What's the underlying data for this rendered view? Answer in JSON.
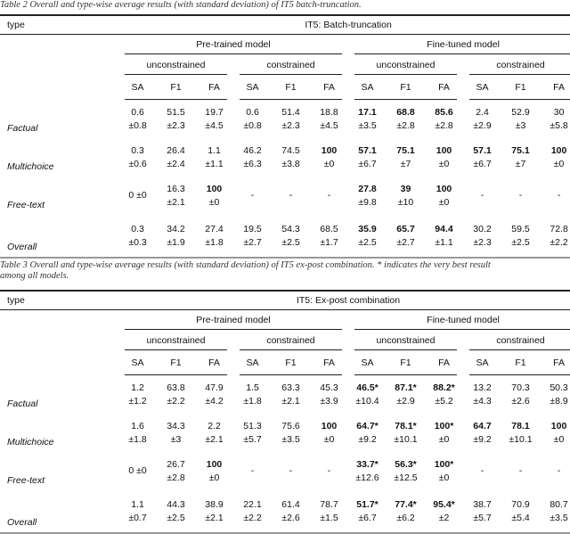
{
  "tables": [
    {
      "caption": [
        "Table 2 Overall and type-wise average results (with standard deviation) of IT5 batch-truncation."
      ],
      "type_header": "type",
      "title": "IT5: Batch-truncation",
      "groups": [
        "Pre-trained model",
        "Fine-tuned model"
      ],
      "subgroups": [
        "unconstrained",
        "constrained",
        "unconstrained",
        "constrained"
      ],
      "metrics": [
        "SA",
        "F1",
        "FA",
        "SA",
        "F1",
        "FA",
        "SA",
        "F1",
        "FA",
        "SA",
        "F1",
        "FA"
      ],
      "rows": [
        {
          "label": "Factual",
          "cells": [
            {
              "v": "0.6",
              "sd": "±0.8"
            },
            {
              "v": "51.5",
              "sd": "±2.3"
            },
            {
              "v": "19.7",
              "sd": "±4.5"
            },
            {
              "v": "0.6",
              "sd": "±0.8"
            },
            {
              "v": "51.4",
              "sd": "±2.3"
            },
            {
              "v": "18.8",
              "sd": "±4.5"
            },
            {
              "v": "17.1",
              "sd": "±3.5",
              "bold": true
            },
            {
              "v": "68.8",
              "sd": "±2.8",
              "bold": true
            },
            {
              "v": "85.6",
              "sd": "±2.8",
              "bold": true
            },
            {
              "v": "2.4",
              "sd": "±2.9"
            },
            {
              "v": "52.9",
              "sd": "±3"
            },
            {
              "v": "30",
              "sd": "±5.8"
            }
          ]
        },
        {
          "label": "Multichoice",
          "cells": [
            {
              "v": "0.3",
              "sd": "±0.6"
            },
            {
              "v": "26.4",
              "sd": "±2.4"
            },
            {
              "v": "1.1",
              "sd": "±1.1"
            },
            {
              "v": "46.2",
              "sd": "±6.3"
            },
            {
              "v": "74.5",
              "sd": "±3.8"
            },
            {
              "v": "100",
              "sd": "±0",
              "bold": true
            },
            {
              "v": "57.1",
              "sd": "±6.7",
              "bold": true
            },
            {
              "v": "75.1",
              "sd": "±7",
              "bold": true
            },
            {
              "v": "100",
              "sd": "±0",
              "bold": true
            },
            {
              "v": "57.1",
              "sd": "±6.7",
              "bold": true
            },
            {
              "v": "75.1",
              "sd": "±7",
              "bold": true
            },
            {
              "v": "100",
              "sd": "±0",
              "bold": true
            }
          ]
        },
        {
          "label": "Free-text",
          "cells": [
            {
              "v": "0  ±0"
            },
            {
              "v": "16.3",
              "sd": "±2.1"
            },
            {
              "v": "100",
              "sd": "±0",
              "bold": true
            },
            {
              "v": "-"
            },
            {
              "v": "-"
            },
            {
              "v": "-"
            },
            {
              "v": "27.8",
              "sd": "±9.8",
              "bold": true
            },
            {
              "v": "39",
              "sd": "±10",
              "bold": true
            },
            {
              "v": "100",
              "sd": "±0",
              "bold": true
            },
            {
              "v": "-"
            },
            {
              "v": "-"
            },
            {
              "v": "-"
            }
          ]
        },
        {
          "label": "Overall",
          "cells": [
            {
              "v": "0.3",
              "sd": "±0.3"
            },
            {
              "v": "34.2",
              "sd": "±1.9"
            },
            {
              "v": "27.4",
              "sd": "±1.8"
            },
            {
              "v": "19.5",
              "sd": "±2.7"
            },
            {
              "v": "54.3",
              "sd": "±2.5"
            },
            {
              "v": "68.5",
              "sd": "±1.7"
            },
            {
              "v": "35.9",
              "sd": "±2.5",
              "bold": true
            },
            {
              "v": "65.7",
              "sd": "±2.7",
              "bold": true
            },
            {
              "v": "94.4",
              "sd": "±1.1",
              "bold": true
            },
            {
              "v": "30.2",
              "sd": "±2.3"
            },
            {
              "v": "59.5",
              "sd": "±2.5"
            },
            {
              "v": "72.8",
              "sd": "±2.2"
            }
          ]
        }
      ]
    },
    {
      "caption": [
        "Table 3 Overall and type-wise average results (with standard deviation) of IT5 ex-post combination. * indicates the very best result",
        "among all models."
      ],
      "type_header": "type",
      "title": "IT5: Ex-post combination",
      "groups": [
        "Pre-trained model",
        "Fine-tuned model"
      ],
      "subgroups": [
        "unconstrained",
        "constrained",
        "unconstrained",
        "constrained"
      ],
      "metrics": [
        "SA",
        "F1",
        "FA",
        "SA",
        "F1",
        "FA",
        "SA",
        "F1",
        "FA",
        "SA",
        "F1",
        "FA"
      ],
      "rows": [
        {
          "label": "Factual",
          "cells": [
            {
              "v": "1.2",
              "sd": "±1.2"
            },
            {
              "v": "63.8",
              "sd": "±2.2"
            },
            {
              "v": "47.9",
              "sd": "±4.2"
            },
            {
              "v": "1.5",
              "sd": "±1.8"
            },
            {
              "v": "63.3",
              "sd": "±2.1"
            },
            {
              "v": "45.3",
              "sd": "±3.9"
            },
            {
              "v": "46.5*",
              "sd": "±10.4",
              "bold": true
            },
            {
              "v": "87.1*",
              "sd": "±2.9",
              "bold": true
            },
            {
              "v": "88.2*",
              "sd": "±5.2",
              "bold": true
            },
            {
              "v": "13.2",
              "sd": "±4.3"
            },
            {
              "v": "70.3",
              "sd": "±2.6"
            },
            {
              "v": "50.3",
              "sd": "±8.9"
            }
          ]
        },
        {
          "label": "Multichoice",
          "cells": [
            {
              "v": "1.6",
              "sd": "±1.8"
            },
            {
              "v": "34.3",
              "sd": "±3"
            },
            {
              "v": "2.2",
              "sd": "±2.1"
            },
            {
              "v": "51.3",
              "sd": "±5.7"
            },
            {
              "v": "75.6",
              "sd": "±3.5"
            },
            {
              "v": "100",
              "sd": "±0",
              "bold": true
            },
            {
              "v": "64.7*",
              "sd": "±9.2",
              "bold": true
            },
            {
              "v": "78.1*",
              "sd": "±10.1",
              "bold": true
            },
            {
              "v": "100*",
              "sd": "±0",
              "bold": true
            },
            {
              "v": "64.7",
              "sd": "±9.2",
              "bold": true
            },
            {
              "v": "78.1",
              "sd": "±10.1",
              "bold": true
            },
            {
              "v": "100",
              "sd": "±0",
              "bold": true
            }
          ]
        },
        {
          "label": "Free-text",
          "cells": [
            {
              "v": "0  ±0"
            },
            {
              "v": "26.7",
              "sd": "±2.8"
            },
            {
              "v": "100",
              "sd": "±0",
              "bold": true
            },
            {
              "v": "-"
            },
            {
              "v": "-"
            },
            {
              "v": "-"
            },
            {
              "v": "33.7*",
              "sd": "±12.6",
              "bold": true
            },
            {
              "v": "56.3*",
              "sd": "±12.5",
              "bold": true
            },
            {
              "v": "100*",
              "sd": "±0",
              "bold": true
            },
            {
              "v": "-"
            },
            {
              "v": "-"
            },
            {
              "v": "-"
            }
          ]
        },
        {
          "label": "Overall",
          "cells": [
            {
              "v": "1.1",
              "sd": "±0.7"
            },
            {
              "v": "44.3",
              "sd": "±2.5"
            },
            {
              "v": "38.9",
              "sd": "±2.1"
            },
            {
              "v": "22.1",
              "sd": "±2.2"
            },
            {
              "v": "61.4",
              "sd": "±2.6"
            },
            {
              "v": "78.7",
              "sd": "±1.5"
            },
            {
              "v": "51.7*",
              "sd": "±6.7",
              "bold": true
            },
            {
              "v": "77.4*",
              "sd": "±6.2",
              "bold": true
            },
            {
              "v": "95.4*",
              "sd": "±2",
              "bold": true
            },
            {
              "v": "38.7",
              "sd": "±5.7"
            },
            {
              "v": "70.9",
              "sd": "±5.4"
            },
            {
              "v": "80.7",
              "sd": "±3.5"
            }
          ]
        }
      ]
    }
  ]
}
